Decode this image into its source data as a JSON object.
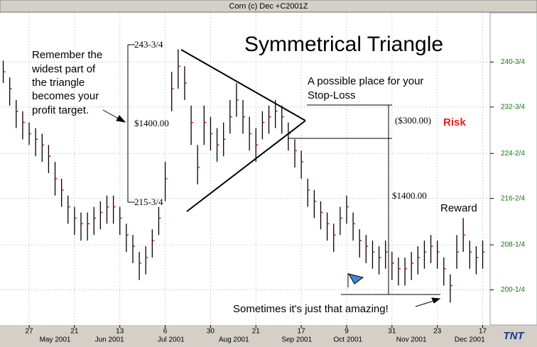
{
  "window_title": "Corn (c) Dec +C2001Z",
  "chart_data": {
    "type": "ohlc",
    "title": "Symmetrical Triangle",
    "bar_color": "#000000",
    "close_color": "#cc0000",
    "grid": true,
    "xlim": [
      -0.5,
      74.6
    ],
    "ylim": [
      194,
      249.5
    ],
    "yticks": [
      {
        "value": 200.25,
        "label": "200-1/4"
      },
      {
        "value": 208.25,
        "label": "208-1/4"
      },
      {
        "value": 216.5,
        "label": "216-2/4"
      },
      {
        "value": 224.5,
        "label": "224-2/4"
      },
      {
        "value": 232.75,
        "label": "232-3/4"
      },
      {
        "value": 240.75,
        "label": "240-3/4"
      }
    ],
    "xticks": [
      {
        "value": 4,
        "label": "27"
      },
      {
        "value": 11,
        "label": "21"
      },
      {
        "value": 18,
        "label": "13"
      },
      {
        "value": 25,
        "label": "6"
      },
      {
        "value": 32,
        "label": "30"
      },
      {
        "value": 39,
        "label": "21"
      },
      {
        "value": 46,
        "label": "17"
      },
      {
        "value": 53,
        "label": "9"
      },
      {
        "value": 60,
        "label": "31"
      },
      {
        "value": 67,
        "label": "23"
      },
      {
        "value": 74,
        "label": "17"
      }
    ],
    "month_labels": [
      {
        "value": 8,
        "label": "May 2001"
      },
      {
        "value": 16.4,
        "label": "Jun 2001"
      },
      {
        "value": 25.9,
        "label": "Jul 2001"
      },
      {
        "value": 35.6,
        "label": "Aug 2001"
      },
      {
        "value": 45.3,
        "label": "Sep 2001"
      },
      {
        "value": 53.2,
        "label": "Oct 2001"
      },
      {
        "value": 63,
        "label": "Nov 2001"
      },
      {
        "value": 72,
        "label": "Dec 2001"
      }
    ],
    "high": [
      241,
      238,
      234,
      232,
      230,
      229,
      228,
      226,
      223,
      220,
      217,
      215,
      214,
      214,
      215,
      216,
      217,
      217,
      215,
      212,
      210,
      207,
      208,
      211,
      215,
      223,
      239,
      243,
      240,
      233,
      226,
      233,
      231,
      229,
      230,
      234,
      237,
      234,
      231,
      229,
      232,
      233,
      234,
      233,
      230,
      227,
      225,
      220,
      218,
      216,
      214,
      212,
      215,
      217,
      214,
      211,
      210,
      209,
      208,
      209,
      207,
      206,
      206,
      207,
      208,
      209,
      210,
      209,
      206,
      203,
      210,
      213,
      209,
      208,
      209
    ],
    "low": [
      237,
      233,
      229,
      227,
      226,
      224,
      223,
      221,
      217,
      215,
      212,
      210,
      209,
      209,
      210,
      211,
      212,
      212,
      210,
      207,
      205,
      202,
      203,
      206,
      210,
      216,
      232,
      236,
      234,
      226,
      219,
      226,
      225,
      223,
      224,
      228,
      231,
      228,
      225,
      223,
      227,
      228,
      229,
      228,
      225,
      222,
      220,
      215,
      213,
      211,
      209,
      207,
      210,
      212,
      209,
      206,
      205,
      204,
      203,
      204,
      202,
      201,
      201,
      202,
      203,
      204,
      205,
      204,
      201,
      198,
      204,
      207,
      204,
      203,
      204
    ],
    "close": [
      239,
      236,
      232,
      230,
      228,
      227,
      226,
      224,
      220,
      218,
      215,
      213,
      212,
      212,
      213,
      214,
      215,
      215,
      213,
      210,
      208,
      205,
      206,
      209,
      213,
      220,
      236,
      240,
      237,
      230,
      222,
      230,
      228,
      226,
      227,
      231,
      234,
      231,
      228,
      226,
      230,
      231,
      232,
      231,
      228,
      225,
      223,
      218,
      216,
      214,
      212,
      210,
      213,
      215,
      212,
      209,
      208,
      207,
      206,
      207,
      205,
      204,
      204,
      205,
      206,
      207,
      208,
      207,
      204,
      201,
      207,
      210,
      207,
      206,
      207
    ]
  },
  "annotations": {
    "note_left": [
      "Remember the",
      "widest part of",
      "the triangle",
      "becomes your",
      "profit target."
    ],
    "top_price": "243-3/4",
    "width_value": "$1400.00",
    "bottom_price": "215-3/4",
    "stop_loss": [
      "A possible place for your",
      "Stop-Loss"
    ],
    "risk_value": "($300.00)",
    "risk": "Risk",
    "reward_value": "$1400.00",
    "reward": "Reward",
    "amazing": "Sometimes it's just that amazing!",
    "logo": "TNT"
  }
}
